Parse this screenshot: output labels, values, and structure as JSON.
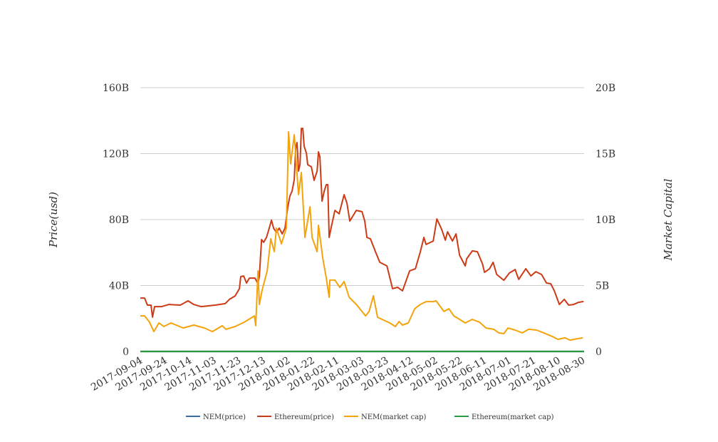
{
  "chart_data": {
    "type": "line",
    "title": "",
    "x_start_date": "2017-09-04",
    "x_unit": "days since 2017-09-04",
    "xlim": [
      0,
      361
    ],
    "x_tick_labels": [
      "2017-09-04",
      "2017-09-24",
      "2017-10-14",
      "2017-11-03",
      "2017-11-23",
      "2017-12-13",
      "2018-01-02",
      "2018-01-22",
      "2018-02-11",
      "2018-03-03",
      "2018-03-23",
      "2018-04-12",
      "2018-05-02",
      "2018-05-22",
      "2018-06-11",
      "2018-07-01",
      "2018-07-21",
      "2018-08-10",
      "2018-08-30"
    ],
    "x_tick_step_days": 20,
    "ylabel": "Price(usd)",
    "y2label": "Market Capital",
    "ylim": [
      0,
      160
    ],
    "y2lim": [
      0,
      20
    ],
    "y_unit": "B",
    "y_ticks": [
      0,
      40,
      80,
      120,
      160
    ],
    "y_tick_labels": [
      "0",
      "40B",
      "80B",
      "120B",
      "160B"
    ],
    "y2_ticks": [
      0,
      5,
      10,
      15,
      20
    ],
    "y2_tick_labels": [
      "0",
      "5B",
      "10B",
      "15B",
      "20B"
    ],
    "grid": true,
    "legend_position": "bottom",
    "series": [
      {
        "name": "NEM(price)",
        "axis": "left",
        "color": "#3b6ea8",
        "points": [
          [
            0,
            0
          ],
          [
            361,
            0
          ]
        ]
      },
      {
        "name": "Ethereum(price)",
        "axis": "left",
        "color": "#cc3b17",
        "points": [
          [
            0,
            32.4
          ],
          [
            3.5,
            32.4
          ],
          [
            5.8,
            28.1
          ],
          [
            8.7,
            28.1
          ],
          [
            9.9,
            20.8
          ],
          [
            11.6,
            27.2
          ],
          [
            17.4,
            27.2
          ],
          [
            23.2,
            28.5
          ],
          [
            32.5,
            28.1
          ],
          [
            38.8,
            30.7
          ],
          [
            43.5,
            28.5
          ],
          [
            49.3,
            27.2
          ],
          [
            60.9,
            28.1
          ],
          [
            69.0,
            29.0
          ],
          [
            72.5,
            31.6
          ],
          [
            77.1,
            33.7
          ],
          [
            80.6,
            38.1
          ],
          [
            81.7,
            45.4
          ],
          [
            84.1,
            45.8
          ],
          [
            86.4,
            41.5
          ],
          [
            88.7,
            44.5
          ],
          [
            93.3,
            44.5
          ],
          [
            95.7,
            41.1
          ],
          [
            96.8,
            45.4
          ],
          [
            98.6,
            67.9
          ],
          [
            100.3,
            66.2
          ],
          [
            102.6,
            69.2
          ],
          [
            104.9,
            74.8
          ],
          [
            106.7,
            79.6
          ],
          [
            108.4,
            74.8
          ],
          [
            110.7,
            72.2
          ],
          [
            113.0,
            74.8
          ],
          [
            115.4,
            71.3
          ],
          [
            117.7,
            74.8
          ],
          [
            120.0,
            87.8
          ],
          [
            121.7,
            94.3
          ],
          [
            123.5,
            97.3
          ],
          [
            125.2,
            104.2
          ],
          [
            126.4,
            123.2
          ],
          [
            127.5,
            126.7
          ],
          [
            128.7,
            109.4
          ],
          [
            129.9,
            113.7
          ],
          [
            131.0,
            135.3
          ],
          [
            132.2,
            135.3
          ],
          [
            133.3,
            124.5
          ],
          [
            135.1,
            120.2
          ],
          [
            136.2,
            113.3
          ],
          [
            139.1,
            112.0
          ],
          [
            141.4,
            103.8
          ],
          [
            143.8,
            109.4
          ],
          [
            144.9,
            121.1
          ],
          [
            146.1,
            118.0
          ],
          [
            147.8,
            91.2
          ],
          [
            149.6,
            97.3
          ],
          [
            151.3,
            101.2
          ],
          [
            152.5,
            101.2
          ],
          [
            153.6,
            69.2
          ],
          [
            155.4,
            75.7
          ],
          [
            158.3,
            85.6
          ],
          [
            161.7,
            83.5
          ],
          [
            165.8,
            95.1
          ],
          [
            168.1,
            89.9
          ],
          [
            170.4,
            79.1
          ],
          [
            175.7,
            85.6
          ],
          [
            180.3,
            84.8
          ],
          [
            182.6,
            79.1
          ],
          [
            184.3,
            69.2
          ],
          [
            187.2,
            68.3
          ],
          [
            191.3,
            60.5
          ],
          [
            194.8,
            54.1
          ],
          [
            200.6,
            51.9
          ],
          [
            205.2,
            38.1
          ],
          [
            209.3,
            38.9
          ],
          [
            213.3,
            36.8
          ],
          [
            219.1,
            48.9
          ],
          [
            223.8,
            50.2
          ],
          [
            227.8,
            60.5
          ],
          [
            230.7,
            69.2
          ],
          [
            232.5,
            64.9
          ],
          [
            238.3,
            67.0
          ],
          [
            241.2,
            80.4
          ],
          [
            245.2,
            73.9
          ],
          [
            248.1,
            67.5
          ],
          [
            249.9,
            72.6
          ],
          [
            253.9,
            67.0
          ],
          [
            256.8,
            71.3
          ],
          [
            259.7,
            58.4
          ],
          [
            264.3,
            51.9
          ],
          [
            265.5,
            56.2
          ],
          [
            270.1,
            61.0
          ],
          [
            274.2,
            60.5
          ],
          [
            278.3,
            53.2
          ],
          [
            280.0,
            48.0
          ],
          [
            284.1,
            50.2
          ],
          [
            287.0,
            54.1
          ],
          [
            289.9,
            46.7
          ],
          [
            295.7,
            43.2
          ],
          [
            300.3,
            47.6
          ],
          [
            304.9,
            49.7
          ],
          [
            307.8,
            43.7
          ],
          [
            313.6,
            50.2
          ],
          [
            317.7,
            45.8
          ],
          [
            321.7,
            48.4
          ],
          [
            326.4,
            46.7
          ],
          [
            330.4,
            41.5
          ],
          [
            333.9,
            41.1
          ],
          [
            336.8,
            36.8
          ],
          [
            340.9,
            28.5
          ],
          [
            344.9,
            31.6
          ],
          [
            348.4,
            28.1
          ],
          [
            352.5,
            28.5
          ],
          [
            356.5,
            29.8
          ],
          [
            360.6,
            30.3
          ]
        ]
      },
      {
        "name": "NEM(market cap)",
        "axis": "right",
        "color": "#f5a30a",
        "points": [
          [
            0,
            2.7
          ],
          [
            3.5,
            2.7
          ],
          [
            7.5,
            2.22
          ],
          [
            11.0,
            1.51
          ],
          [
            15.1,
            2.16
          ],
          [
            19.1,
            1.89
          ],
          [
            24.9,
            2.16
          ],
          [
            34.8,
            1.78
          ],
          [
            43.5,
            2.0
          ],
          [
            52.2,
            1.78
          ],
          [
            58.6,
            1.51
          ],
          [
            66.7,
            1.95
          ],
          [
            69.6,
            1.68
          ],
          [
            77.1,
            1.89
          ],
          [
            84.6,
            2.22
          ],
          [
            92.8,
            2.7
          ],
          [
            93.9,
            1.95
          ],
          [
            95.7,
            6.11
          ],
          [
            96.8,
            3.57
          ],
          [
            99.1,
            4.65
          ],
          [
            103.2,
            6.11
          ],
          [
            106.1,
            8.54
          ],
          [
            109.0,
            7.57
          ],
          [
            110.7,
            9.35
          ],
          [
            114.8,
            8.16
          ],
          [
            118.8,
            9.35
          ],
          [
            120.6,
            16.65
          ],
          [
            122.3,
            14.22
          ],
          [
            125.2,
            16.43
          ],
          [
            128.7,
            11.89
          ],
          [
            131.0,
            13.57
          ],
          [
            133.9,
            8.65
          ],
          [
            138.0,
            10.97
          ],
          [
            139.7,
            8.65
          ],
          [
            143.8,
            7.57
          ],
          [
            144.9,
            9.57
          ],
          [
            148.4,
            7.08
          ],
          [
            151.3,
            5.57
          ],
          [
            153.6,
            4.11
          ],
          [
            154.2,
            5.41
          ],
          [
            158.3,
            5.41
          ],
          [
            162.3,
            4.86
          ],
          [
            165.8,
            5.3
          ],
          [
            169.9,
            4.11
          ],
          [
            175.7,
            3.57
          ],
          [
            183.2,
            2.7
          ],
          [
            186.1,
            3.03
          ],
          [
            189.6,
            4.22
          ],
          [
            193.0,
            2.59
          ],
          [
            202.9,
            2.16
          ],
          [
            207.5,
            1.89
          ],
          [
            210.4,
            2.27
          ],
          [
            213.3,
            2.0
          ],
          [
            218.0,
            2.16
          ],
          [
            223.2,
            3.24
          ],
          [
            227.8,
            3.57
          ],
          [
            232.5,
            3.78
          ],
          [
            238.3,
            3.78
          ],
          [
            240.6,
            3.84
          ],
          [
            247.0,
            3.03
          ],
          [
            251.0,
            3.24
          ],
          [
            255.1,
            2.7
          ],
          [
            259.7,
            2.43
          ],
          [
            264.3,
            2.16
          ],
          [
            270.1,
            2.43
          ],
          [
            275.9,
            2.22
          ],
          [
            281.2,
            1.78
          ],
          [
            287.5,
            1.68
          ],
          [
            291.6,
            1.41
          ],
          [
            295.7,
            1.35
          ],
          [
            299.1,
            1.78
          ],
          [
            304.9,
            1.62
          ],
          [
            310.7,
            1.41
          ],
          [
            315.9,
            1.68
          ],
          [
            322.3,
            1.62
          ],
          [
            328.1,
            1.41
          ],
          [
            335.1,
            1.14
          ],
          [
            339.7,
            0.92
          ],
          [
            345.5,
            1.03
          ],
          [
            349.6,
            0.86
          ],
          [
            355.4,
            0.97
          ],
          [
            360.0,
            1.03
          ]
        ]
      },
      {
        "name": "Ethereum(market cap)",
        "axis": "left",
        "color": "#2a9a3c",
        "points": [
          [
            0,
            0
          ],
          [
            361,
            0
          ]
        ]
      }
    ]
  }
}
